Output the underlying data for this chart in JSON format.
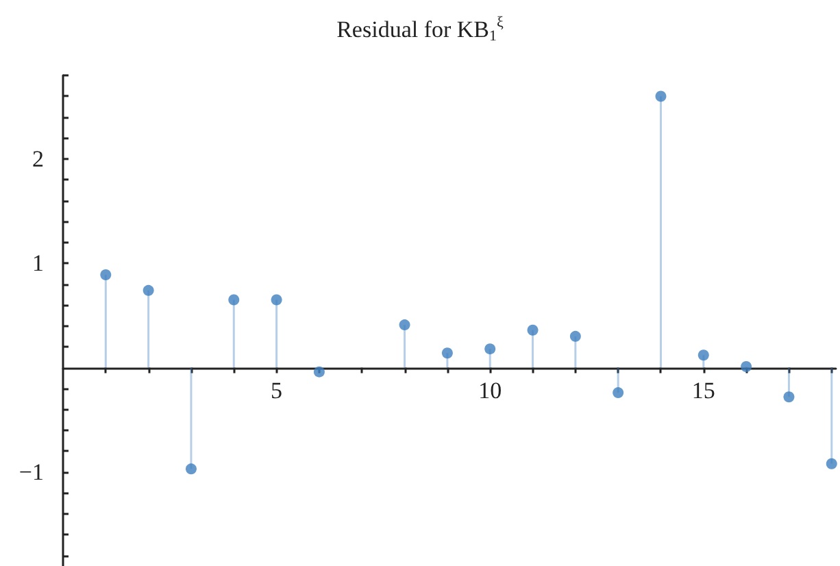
{
  "chart_data": {
    "type": "lollipop",
    "title": "Residual for KB$_{1}$$^{ξ}$",
    "x": [
      1,
      2,
      3,
      4,
      5,
      6,
      8,
      9,
      10,
      11,
      12,
      13,
      14,
      15,
      16,
      17,
      18
    ],
    "values": [
      0.89,
      0.74,
      -0.97,
      0.65,
      0.65,
      -0.04,
      0.41,
      0.14,
      0.18,
      0.36,
      0.3,
      -0.24,
      2.6,
      0.12,
      0.01,
      -0.28,
      -0.92
    ],
    "color": "#3f7fbf",
    "marker": "circle",
    "grid": false,
    "xlim": [
      0,
      18.1
    ],
    "ylim": [
      -1.9,
      2.8
    ],
    "xticks": [
      {
        "value": 1,
        "label": null
      },
      {
        "value": 2,
        "label": null
      },
      {
        "value": 3,
        "label": null
      },
      {
        "value": 4,
        "label": null
      },
      5,
      {
        "value": 6,
        "label": null
      },
      {
        "value": 7,
        "label": null
      },
      {
        "value": 8,
        "label": null
      },
      {
        "value": 9,
        "label": null
      },
      10,
      {
        "value": 11,
        "label": null
      },
      {
        "value": 12,
        "label": null
      },
      {
        "value": 13,
        "label": null
      },
      {
        "value": 14,
        "label": null
      },
      15,
      {
        "value": 16,
        "label": null
      },
      {
        "value": 17,
        "label": null
      },
      {
        "value": 18,
        "label": null
      }
    ],
    "yticks": [
      {
        "value": -1.8,
        "label": null
      },
      {
        "value": -1.6,
        "label": null
      },
      {
        "value": -1.4,
        "label": null
      },
      {
        "value": -1.2,
        "label": null
      },
      {
        "value": -1,
        "label": "−1"
      },
      {
        "value": -0.8,
        "label": null
      },
      {
        "value": -0.6,
        "label": null
      },
      {
        "value": -0.4,
        "label": null
      },
      {
        "value": -0.2,
        "label": null
      },
      {
        "value": 0.2,
        "label": null
      },
      {
        "value": 0.4,
        "label": null
      },
      {
        "value": 0.6,
        "label": null
      },
      {
        "value": 0.8,
        "label": null
      },
      1,
      {
        "value": 1.2,
        "label": null
      },
      {
        "value": 1.4,
        "label": null
      },
      {
        "value": 1.6,
        "label": null
      },
      {
        "value": 1.8,
        "label": null
      },
      2,
      {
        "value": 2.2,
        "label": null
      },
      {
        "value": 2.4,
        "label": null
      },
      {
        "value": 2.6,
        "label": null
      },
      {
        "value": 2.8,
        "label": null
      }
    ]
  }
}
